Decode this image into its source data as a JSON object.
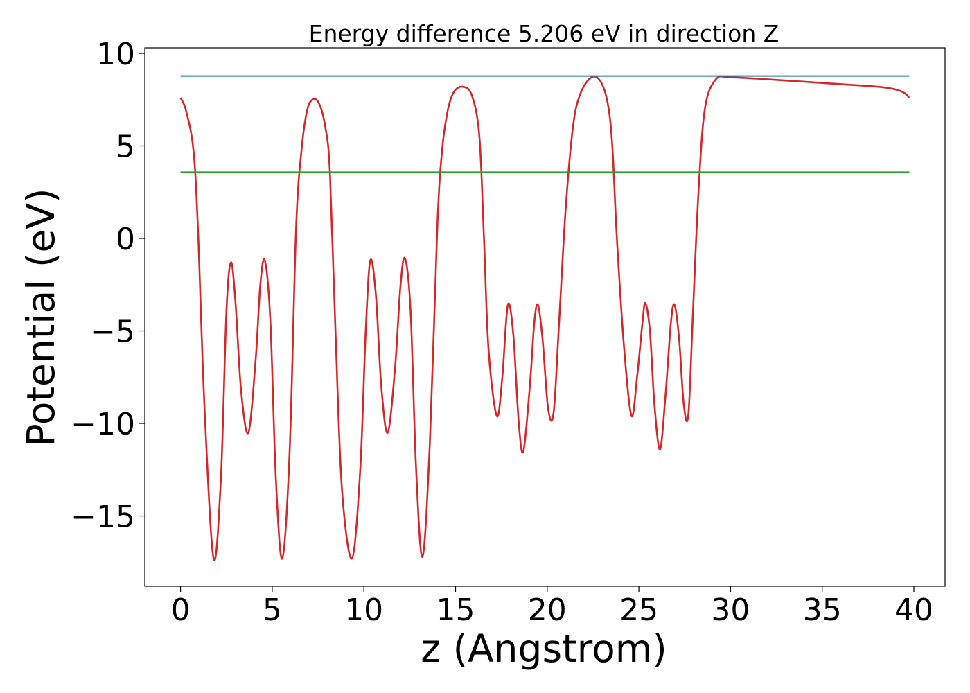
{
  "chart_data": {
    "type": "line",
    "title": "Energy difference 5.206 eV in direction Z",
    "xlabel": "z (Angstrom)",
    "ylabel": "Potential (eV)",
    "xlim": [
      -1.95,
      41.7
    ],
    "ylim": [
      -18.8,
      10.3
    ],
    "x_ticks": [
      0,
      5,
      10,
      15,
      20,
      25,
      30,
      35,
      40
    ],
    "y_ticks": [
      -15,
      -10,
      -5,
      0,
      5,
      10
    ],
    "x_tick_labels": [
      "0",
      "5",
      "10",
      "15",
      "20",
      "25",
      "30",
      "35",
      "40"
    ],
    "y_tick_labels": [
      "−15",
      "−10",
      "−5",
      "0",
      "5",
      "10"
    ],
    "grid": false,
    "legend": "none",
    "series": [
      {
        "color": "#d62728",
        "x": [
          0,
          0.3,
          0.7,
          0.95,
          1.3,
          1.8,
          2.2,
          2.5,
          2.75,
          3.0,
          3.3,
          3.7,
          4.1,
          4.35,
          4.6,
          4.9,
          5.2,
          5.55,
          5.95,
          6.3,
          6.6,
          6.9,
          7.2,
          7.55,
          7.9,
          8.15,
          8.45,
          8.8,
          9.35,
          9.8,
          10.1,
          10.35,
          10.65,
          10.95,
          11.3,
          11.7,
          12.0,
          12.25,
          12.55,
          12.85,
          13.2,
          13.6,
          14.0,
          14.25,
          14.55,
          14.9,
          15.4,
          15.9,
          16.3,
          16.55,
          16.8,
          17.25,
          17.55,
          17.85,
          18.15,
          18.45,
          18.7,
          19.05,
          19.3,
          19.5,
          19.75,
          20.05,
          20.35,
          20.65,
          21.0,
          21.4,
          21.8,
          22.4,
          22.9,
          23.3,
          23.55,
          23.8,
          24.2,
          24.6,
          24.9,
          25.2,
          25.35,
          25.6,
          25.85,
          26.15,
          26.45,
          26.75,
          26.95,
          27.2,
          27.45,
          27.7,
          27.95,
          28.25,
          28.6,
          29.2,
          30.0,
          32.0,
          35.0,
          38.0,
          39.0,
          39.5,
          39.75
        ],
        "values": [
          7.6,
          6.9,
          4.8,
          0.5,
          -9.0,
          -17.3,
          -13.0,
          -4.0,
          -1.3,
          -3.5,
          -8.2,
          -10.5,
          -6.5,
          -2.5,
          -1.2,
          -4.5,
          -13.0,
          -17.3,
          -11.5,
          0.5,
          4.8,
          6.9,
          7.5,
          7.3,
          6.0,
          3.5,
          -5.0,
          -13.5,
          -17.3,
          -12.5,
          -5.0,
          -1.2,
          -3.0,
          -8.0,
          -10.5,
          -7.0,
          -2.5,
          -1.1,
          -4.0,
          -12.5,
          -17.2,
          -11.0,
          0.5,
          4.6,
          6.8,
          7.9,
          8.2,
          7.7,
          5.5,
          0.0,
          -6.0,
          -9.6,
          -7.5,
          -3.6,
          -5.2,
          -10.0,
          -11.5,
          -8.0,
          -4.5,
          -3.6,
          -5.5,
          -9.2,
          -9.4,
          -4.5,
          1.5,
          6.0,
          7.8,
          8.7,
          8.5,
          7.3,
          5.0,
          0.0,
          -6.0,
          -9.6,
          -7.5,
          -4.5,
          -3.5,
          -5.0,
          -9.0,
          -11.4,
          -8.5,
          -4.5,
          -3.6,
          -5.5,
          -9.0,
          -9.5,
          -4.0,
          2.5,
          7.0,
          8.6,
          8.7,
          8.6,
          8.4,
          8.2,
          8.05,
          7.85,
          7.6
        ]
      },
      {
        "color": "#1f77b4",
        "x": [
          0,
          39.75
        ],
        "values": [
          8.78,
          8.78
        ]
      },
      {
        "color": "#2ca02c",
        "x": [
          0,
          39.75
        ],
        "values": [
          3.58,
          3.58
        ]
      }
    ]
  }
}
